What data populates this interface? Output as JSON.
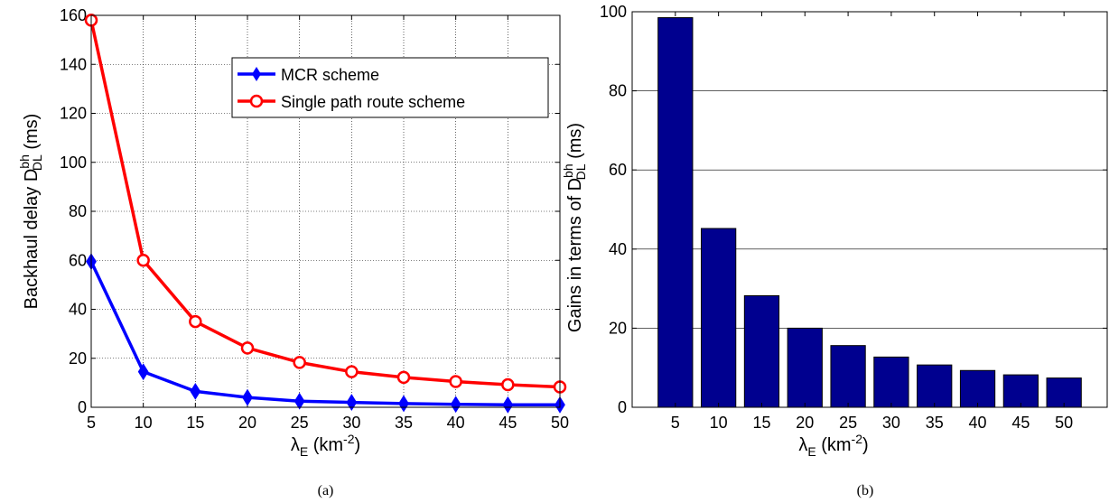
{
  "chart_data": [
    {
      "type": "line",
      "panel_label": "(a)",
      "x": [
        5,
        10,
        15,
        20,
        25,
        30,
        35,
        40,
        45,
        50
      ],
      "xlim": [
        5,
        50
      ],
      "ylim": [
        0,
        160
      ],
      "xticks": [
        5,
        10,
        15,
        20,
        25,
        30,
        35,
        40,
        45,
        50
      ],
      "yticks": [
        0,
        20,
        40,
        60,
        80,
        100,
        120,
        140,
        160
      ],
      "grid": true,
      "legend_position": "top-center",
      "xlabel": {
        "main": "λ",
        "sub": "E",
        "rest": " (km",
        "sup": "-2",
        "end": ")"
      },
      "ylabel": {
        "main": "Backhaul delay D",
        "sup": "bh",
        "sub": "DL",
        "end": " (ms)"
      },
      "series": [
        {
          "name": "MCR scheme",
          "color": "#0000ff",
          "marker": "diamond",
          "values": [
            59.5,
            14.5,
            6.5,
            4.0,
            2.5,
            2.0,
            1.5,
            1.2,
            1.0,
            1.0
          ]
        },
        {
          "name": "Single path route scheme",
          "color": "#ff0000",
          "marker": "circle",
          "values": [
            158,
            60,
            35,
            24.2,
            18.3,
            14.5,
            12.2,
            10.5,
            9.2,
            8.3
          ]
        }
      ]
    },
    {
      "type": "bar",
      "panel_label": "(b)",
      "categories": [
        "5",
        "10",
        "15",
        "20",
        "25",
        "30",
        "35",
        "40",
        "45",
        "50"
      ],
      "values": [
        98.5,
        45.2,
        28.2,
        20.0,
        15.6,
        12.7,
        10.7,
        9.3,
        8.2,
        7.4
      ],
      "ylim": [
        0,
        100
      ],
      "yticks": [
        0,
        20,
        40,
        60,
        80,
        100
      ],
      "grid": "horizontal",
      "bar_color": "#00008f",
      "xlabel": {
        "main": "λ",
        "sub": "E",
        "rest": " (km",
        "sup": "-2",
        "end": ")"
      },
      "ylabel": {
        "main": "Gains in terms of D",
        "sup": "bh",
        "sub": "DL",
        "end": " (ms)"
      }
    }
  ]
}
